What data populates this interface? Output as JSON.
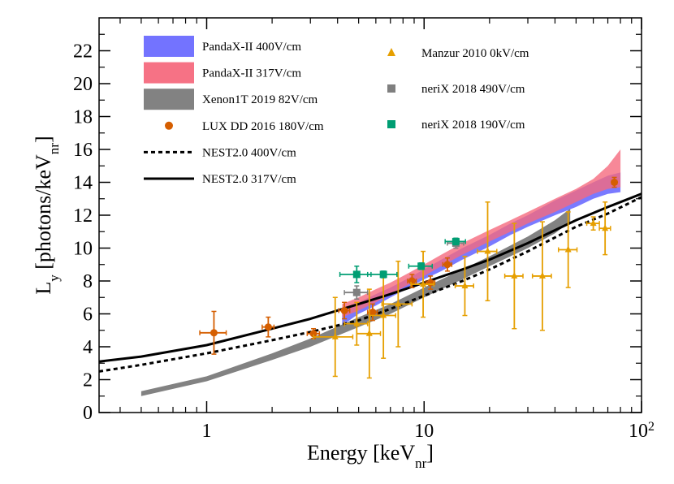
{
  "chart_data": {
    "type": "scatter",
    "title": "",
    "xlabel": "Energy [keV",
    "xlabel_sub": "nr",
    "xlabel_close": "]",
    "ylabel": "L",
    "ylabel_sub": "y",
    "ylabel_mid": " [photons/keV",
    "ylabel_sub2": "nr",
    "ylabel_close": "]",
    "x_scale": "log",
    "xlim": [
      0.32,
      100
    ],
    "ylim": [
      0,
      24
    ],
    "x_ticks": [
      {
        "value": 1,
        "label": "1"
      },
      {
        "value": 10,
        "label": "10"
      },
      {
        "value": 100,
        "label": "10",
        "sup": "2"
      }
    ],
    "y_ticks": [
      {
        "value": 0,
        "label": "0"
      },
      {
        "value": 2,
        "label": "2"
      },
      {
        "value": 4,
        "label": "4"
      },
      {
        "value": 6,
        "label": "6"
      },
      {
        "value": 8,
        "label": "8"
      },
      {
        "value": 10,
        "label": "10"
      },
      {
        "value": 12,
        "label": "12"
      },
      {
        "value": 14,
        "label": "14"
      },
      {
        "value": 16,
        "label": "16"
      },
      {
        "value": 18,
        "label": "18"
      },
      {
        "value": 20,
        "label": "20"
      },
      {
        "value": 22,
        "label": "22"
      }
    ],
    "bands": [
      {
        "name": "PandaX-II 400V/cm",
        "color": "#6b6bff",
        "opacity": 0.9,
        "x": [
          4.2,
          5,
          6,
          7,
          8,
          10,
          12,
          15,
          20,
          25,
          30,
          40,
          50,
          60,
          70,
          80
        ],
        "lower": [
          5.3,
          6.0,
          6.5,
          7.0,
          7.4,
          8.1,
          8.6,
          9.3,
          10.1,
          10.8,
          11.3,
          12.0,
          12.5,
          13.0,
          13.3,
          13.4
        ],
        "upper": [
          6.2,
          6.7,
          7.2,
          7.6,
          8.0,
          8.7,
          9.3,
          10.0,
          10.8,
          11.5,
          12.0,
          12.9,
          13.5,
          14.0,
          14.4,
          14.6
        ]
      },
      {
        "name": "PandaX-II 317V/cm",
        "color": "#f56a7e",
        "opacity": 0.8,
        "x": [
          4.2,
          5,
          6,
          7,
          8,
          10,
          12,
          15,
          20,
          25,
          30,
          40,
          50,
          60,
          70,
          80
        ],
        "lower": [
          5.8,
          6.2,
          6.7,
          7.2,
          7.6,
          8.3,
          8.9,
          9.6,
          10.4,
          11.0,
          11.5,
          12.2,
          12.8,
          13.3,
          13.6,
          13.7
        ],
        "upper": [
          6.6,
          7.0,
          7.5,
          7.9,
          8.3,
          9.0,
          9.6,
          10.3,
          11.1,
          11.7,
          12.2,
          13.0,
          13.6,
          14.2,
          15.0,
          16.0
        ]
      },
      {
        "name": "Xenon1T 2019  82V/cm",
        "color": "#7b7b7b",
        "opacity": 0.95,
        "x": [
          0.5,
          1,
          2,
          3,
          5,
          7,
          10,
          15,
          20,
          30,
          40,
          47
        ],
        "lower": [
          1.0,
          1.9,
          3.2,
          4.0,
          5.2,
          6.0,
          7.0,
          8.1,
          8.9,
          10.0,
          10.9,
          11.6
        ],
        "upper": [
          1.3,
          2.2,
          3.6,
          4.5,
          5.8,
          6.6,
          7.6,
          8.7,
          9.5,
          10.7,
          11.7,
          12.4
        ]
      }
    ],
    "lines": [
      {
        "name": "NEST2.0 400V/cm",
        "dash": "dotted",
        "color": "#000000",
        "x": [
          0.32,
          0.5,
          1,
          2,
          3,
          5,
          7,
          10,
          15,
          20,
          30,
          50,
          70,
          100
        ],
        "y": [
          2.5,
          2.9,
          3.6,
          4.4,
          4.9,
          5.6,
          6.3,
          7.1,
          8.0,
          8.7,
          9.8,
          11.3,
          12.1,
          13.1
        ]
      },
      {
        "name": "NEST2.0 317V/cm",
        "dash": "solid",
        "color": "#000000",
        "x": [
          0.32,
          0.5,
          1,
          2,
          3,
          5,
          7,
          10,
          15,
          20,
          30,
          50,
          70,
          100
        ],
        "y": [
          3.1,
          3.4,
          4.1,
          5.1,
          5.7,
          6.6,
          7.2,
          7.9,
          8.7,
          9.3,
          10.3,
          11.7,
          12.5,
          13.3
        ]
      }
    ],
    "point_series": [
      {
        "name": "LUX DD 2016 180V/cm",
        "marker": "circle",
        "color": "#d55e00",
        "points": [
          {
            "x": 1.08,
            "y": 4.85,
            "xerr": 0.15,
            "yerr": 1.3
          },
          {
            "x": 1.92,
            "y": 5.2,
            "xerr": 0.12,
            "yerr": 0.6
          },
          {
            "x": 3.1,
            "y": 4.8,
            "xerr": 0.2,
            "yerr": 0.3
          },
          {
            "x": 4.3,
            "y": 6.2,
            "xerr": 0.25,
            "yerr": 0.5
          },
          {
            "x": 5.8,
            "y": 6.1,
            "xerr": 0.3,
            "yerr": 0.5
          },
          {
            "x": 8.8,
            "y": 8.0,
            "xerr": 0.4,
            "yerr": 0.4
          },
          {
            "x": 10.7,
            "y": 7.9,
            "xerr": 0.5,
            "yerr": 0.4
          },
          {
            "x": 12.8,
            "y": 9.0,
            "xerr": 0.6,
            "yerr": 0.4
          },
          {
            "x": 75,
            "y": 14.0,
            "xerr": 2,
            "yerr": 0.3
          }
        ]
      },
      {
        "name": "Manzur 2010 0kV/cm",
        "marker": "triangle",
        "color": "#e69f00",
        "points": [
          {
            "x": 3.9,
            "y": 4.6,
            "xerr": 0.8,
            "yerr": 2.4
          },
          {
            "x": 4.9,
            "y": 5.4,
            "xerr": 0.6,
            "yerr": 1.3
          },
          {
            "x": 5.6,
            "y": 4.8,
            "xerr": 0.7,
            "yerr": 2.7
          },
          {
            "x": 6.5,
            "y": 5.9,
            "xerr": 0.9,
            "yerr": 2.6
          },
          {
            "x": 7.6,
            "y": 6.6,
            "xerr": 1.2,
            "yerr": 2.6
          },
          {
            "x": 9.9,
            "y": 7.8,
            "xerr": 1.2,
            "yerr": 2.0
          },
          {
            "x": 15.4,
            "y": 7.7,
            "xerr": 1.5,
            "yerr": 1.8
          },
          {
            "x": 19.6,
            "y": 9.8,
            "xerr": 2.0,
            "yerr": 3.0
          },
          {
            "x": 26,
            "y": 8.3,
            "xerr": 2.5,
            "yerr": 3.2
          },
          {
            "x": 35,
            "y": 8.3,
            "xerr": 3.5,
            "yerr": 3.3
          },
          {
            "x": 46,
            "y": 9.9,
            "xerr": 4.5,
            "yerr": 2.3
          },
          {
            "x": 60,
            "y": 11.5,
            "xerr": 4,
            "yerr": 0.4
          },
          {
            "x": 68,
            "y": 11.2,
            "xerr": 4,
            "yerr": 1.6
          }
        ]
      },
      {
        "name": "neriX 2018 490V/cm",
        "marker": "square",
        "color": "#7f7f7f",
        "points": [
          {
            "x": 4.9,
            "y": 7.3,
            "xerr": 0.6,
            "yerr": 0.4
          },
          {
            "x": 14,
            "y": 10.3,
            "xerr": 1.2,
            "yerr": 0.3
          }
        ]
      },
      {
        "name": "neriX 2018 190V/cm",
        "marker": "square",
        "color": "#009e73",
        "points": [
          {
            "x": 4.9,
            "y": 8.4,
            "xerr": 0.8,
            "yerr": 0.5
          },
          {
            "x": 6.5,
            "y": 8.4,
            "xerr": 1.0,
            "yerr": 0.2
          },
          {
            "x": 9.7,
            "y": 8.9,
            "xerr": 1.2,
            "yerr": 0.2
          },
          {
            "x": 14,
            "y": 10.4,
            "xerr": 1.5,
            "yerr": 0.2
          }
        ]
      }
    ],
    "legend_left": [
      {
        "label": "PandaX-II 400V/cm",
        "kind": "band",
        "color": "#6b6bff"
      },
      {
        "label": "PandaX-II 317V/cm",
        "kind": "band",
        "color": "#f56a7e"
      },
      {
        "label": "Xenon1T 2019  82V/cm",
        "kind": "band",
        "color": "#7b7b7b"
      },
      {
        "label": "LUX DD 2016 180V/cm",
        "kind": "circle",
        "color": "#d55e00"
      },
      {
        "label": "NEST2.0 400V/cm",
        "kind": "dotted",
        "color": "#000000"
      },
      {
        "label": "NEST2.0 317V/cm",
        "kind": "solid",
        "color": "#000000"
      }
    ],
    "legend_right": [
      {
        "label": "Manzur 2010 0kV/cm",
        "kind": "triangle",
        "color": "#e69f00"
      },
      {
        "label": "neriX 2018 490V/cm",
        "kind": "square",
        "color": "#7f7f7f"
      },
      {
        "label": "neriX 2018 190V/cm",
        "kind": "square",
        "color": "#009e73"
      }
    ]
  }
}
